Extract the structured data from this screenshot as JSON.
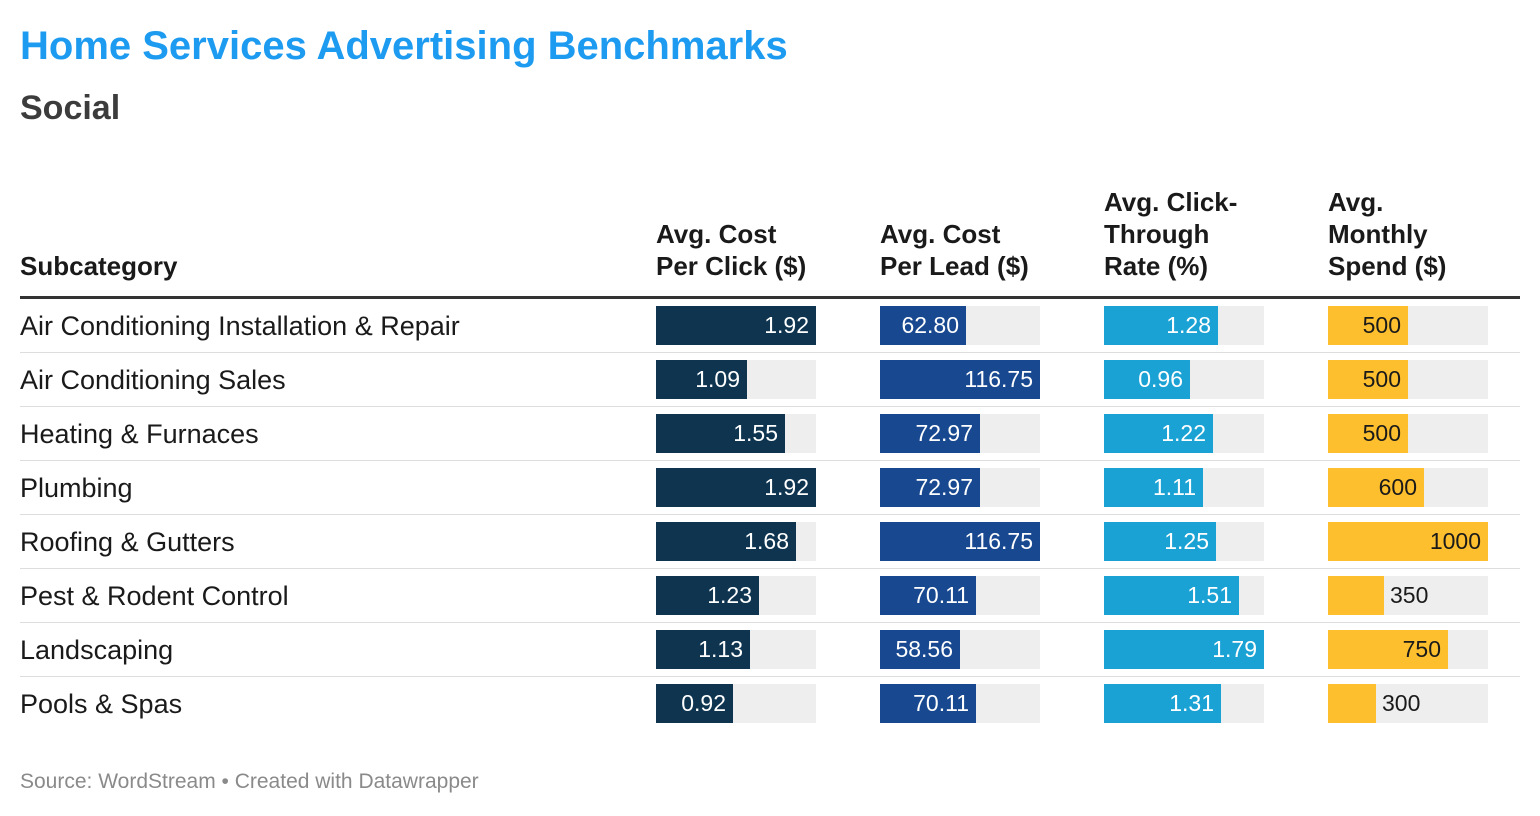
{
  "title": "Home Services Advertising Benchmarks",
  "subtitle": "Social",
  "footer": {
    "source": "Source: WordStream",
    "separator": " • ",
    "credit": "Created with Datawrapper"
  },
  "chart_data": {
    "type": "table",
    "row_header": "Subcategory",
    "columns": [
      {
        "key": "cpc",
        "header": [
          "Avg. Cost",
          "Per Click ($)"
        ],
        "color": "#0e3450",
        "text_color": "#ffffff",
        "max": 1.92,
        "decimals": 2
      },
      {
        "key": "cpl",
        "header": [
          "Avg. Cost",
          "Per Lead ($)"
        ],
        "color": "#18488f",
        "text_color": "#ffffff",
        "max": 116.75,
        "decimals": 2
      },
      {
        "key": "ctr",
        "header": [
          "Avg. Click-",
          "Through",
          "Rate (%)"
        ],
        "color": "#1ba2d4",
        "text_color": "#ffffff",
        "max": 1.79,
        "decimals": 2
      },
      {
        "key": "spend",
        "header": [
          "Avg.",
          "Monthly",
          "Spend ($)"
        ],
        "color": "#fdbf2d",
        "text_color": "#1a1a1a",
        "max": 1000,
        "decimals": 0
      }
    ],
    "rows": [
      {
        "name": "Air Conditioning Installation & Repair",
        "cpc": 1.92,
        "cpl": 62.8,
        "ctr": 1.28,
        "spend": 500
      },
      {
        "name": "Air Conditioning Sales",
        "cpc": 1.09,
        "cpl": 116.75,
        "ctr": 0.96,
        "spend": 500
      },
      {
        "name": "Heating & Furnaces",
        "cpc": 1.55,
        "cpl": 72.97,
        "ctr": 1.22,
        "spend": 500
      },
      {
        "name": "Plumbing",
        "cpc": 1.92,
        "cpl": 72.97,
        "ctr": 1.11,
        "spend": 600
      },
      {
        "name": "Roofing & Gutters",
        "cpc": 1.68,
        "cpl": 116.75,
        "ctr": 1.25,
        "spend": 1000
      },
      {
        "name": "Pest & Rodent Control",
        "cpc": 1.23,
        "cpl": 70.11,
        "ctr": 1.51,
        "spend": 350
      },
      {
        "name": "Landscaping",
        "cpc": 1.13,
        "cpl": 58.56,
        "ctr": 1.79,
        "spend": 750
      },
      {
        "name": "Pools & Spas",
        "cpc": 0.92,
        "cpl": 70.11,
        "ctr": 1.31,
        "spend": 300
      }
    ]
  }
}
